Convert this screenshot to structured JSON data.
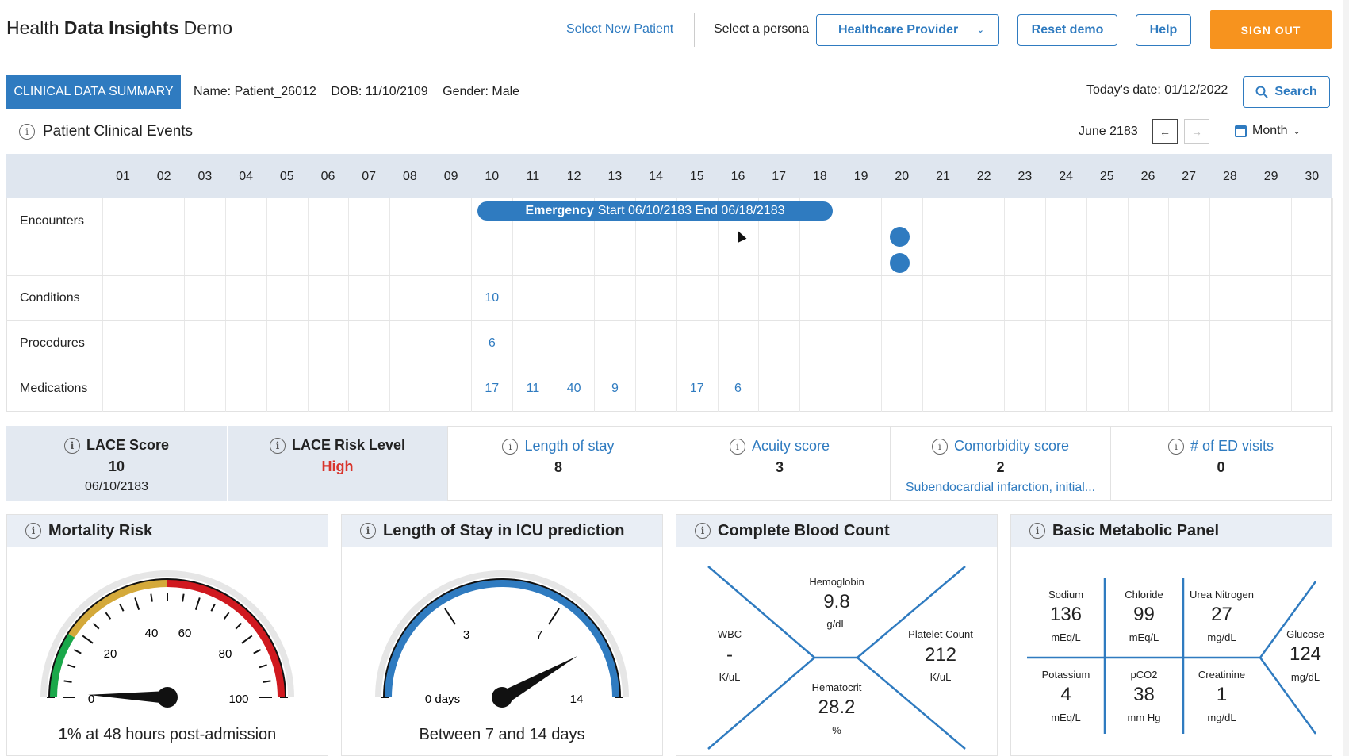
{
  "header": {
    "title_pre": "Health ",
    "title_bold": "Data Insights",
    "title_post": " Demo",
    "select_new_patient": "Select New Patient",
    "persona_label": "Select a persona",
    "persona_value": "Healthcare Provider",
    "reset_label": "Reset demo",
    "help_label": "Help",
    "signout_label": "SIGN OUT"
  },
  "summary": {
    "tab_label": "CLINICAL DATA SUMMARY",
    "name": "Name: Patient_26012",
    "dob": "DOB: 11/10/2109",
    "gender": "Gender: Male",
    "today": "Today's date: 01/12/2022",
    "search_label": "Search"
  },
  "events": {
    "title": "Patient Clinical Events",
    "month": "June 2183",
    "prev_icon": "arrow-left-icon",
    "next_icon": "arrow-right-icon",
    "view_label": "Month",
    "days": [
      "01",
      "02",
      "03",
      "04",
      "05",
      "06",
      "07",
      "08",
      "09",
      "10",
      "11",
      "12",
      "13",
      "14",
      "15",
      "16",
      "17",
      "18",
      "19",
      "20",
      "21",
      "22",
      "23",
      "24",
      "25",
      "26",
      "27",
      "28",
      "29",
      "30"
    ],
    "rows": [
      "Encounters",
      "Conditions",
      "Procedures",
      "Medications"
    ],
    "encounter_bar": {
      "type": "Emergency",
      "text": "Start 06/10/2183 End 06/18/2183",
      "start_day": 10,
      "end_day": 18
    },
    "encounter_dots": [
      {
        "day": 20
      },
      {
        "day": 20
      }
    ],
    "conditions": [
      {
        "day": 10,
        "count": "10"
      }
    ],
    "procedures": [
      {
        "day": 10,
        "count": "6"
      }
    ],
    "medications": [
      {
        "day": 10,
        "count": "17"
      },
      {
        "day": 11,
        "count": "11"
      },
      {
        "day": 12,
        "count": "40"
      },
      {
        "day": 13,
        "count": "9"
      },
      {
        "day": 15,
        "count": "17"
      },
      {
        "day": 16,
        "count": "6"
      }
    ]
  },
  "metrics": [
    {
      "title": "LACE Score",
      "value": "10",
      "sub": "06/10/2183"
    },
    {
      "title": "LACE Risk Level",
      "value": "High"
    },
    {
      "title": "Length of stay",
      "value": "8"
    },
    {
      "title": "Acuity score",
      "value": "3"
    },
    {
      "title": "Comorbidity score",
      "value": "2",
      "sub": "Subendocardial infarction, initial..."
    },
    {
      "title": "# of ED visits",
      "value": "0"
    }
  ],
  "mortality": {
    "title": "Mortality Risk",
    "ticks": [
      "0",
      "20",
      "40",
      "60",
      "80",
      "100"
    ],
    "value": 1,
    "caption_bold": "1",
    "caption_rest": "% at 48 hours post-admission",
    "colors": {
      "green": "#1aa84a",
      "yellow": "#d4a93a",
      "red": "#d0191f"
    }
  },
  "icu": {
    "title": "Length of Stay in ICU prediction",
    "ticks": [
      "0 days",
      "3",
      "7",
      "14"
    ],
    "caption": "Between 7 and 14 days",
    "colors": {
      "band": "#2f7bc0"
    }
  },
  "cbc": {
    "title": "Complete Blood Count",
    "hemoglobin": {
      "name": "Hemoglobin",
      "value": "9.8",
      "unit": "g/dL"
    },
    "wbc": {
      "name": "WBC",
      "value": "-",
      "unit": "K/uL"
    },
    "platelet": {
      "name": "Platelet Count",
      "value": "212",
      "unit": "K/uL"
    },
    "hematocrit": {
      "name": "Hematocrit",
      "value": "28.2",
      "unit": "%"
    }
  },
  "bmp": {
    "title": "Basic Metabolic Panel",
    "sodium": {
      "name": "Sodium",
      "value": "136",
      "unit": "mEq/L"
    },
    "chloride": {
      "name": "Chloride",
      "value": "99",
      "unit": "mEq/L"
    },
    "urea": {
      "name": "Urea Nitrogen",
      "value": "27",
      "unit": "mg/dL"
    },
    "potassium": {
      "name": "Potassium",
      "value": "4",
      "unit": "mEq/L"
    },
    "pco2": {
      "name": "pCO2",
      "value": "38",
      "unit": "mm Hg"
    },
    "creatinine": {
      "name": "Creatinine",
      "value": "1",
      "unit": "mg/dL"
    },
    "glucose": {
      "name": "Glucose",
      "value": "124",
      "unit": "mg/dL"
    }
  },
  "colors": {
    "accent": "#2f7bc0",
    "signout": "#f7931e",
    "risk_high": "#d9342b"
  }
}
